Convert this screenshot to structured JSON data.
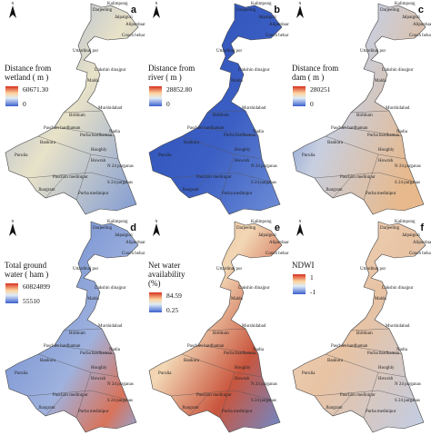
{
  "districts": [
    "Darjeeling",
    "Kalimpong",
    "Jalpaiguri",
    "Alipurduar",
    "Cooch behar",
    "Uttardinaj pur",
    "Dakshin dinajpur",
    "Malda",
    "Murshidabad",
    "Birbhum",
    "Nadia",
    "Paschim bardhaman",
    "Purba bardhaman",
    "Bankura",
    "Purulia",
    "Hooghly",
    "Howrah",
    "N 24 parganas",
    "Paschim medinipur",
    "Jhargram",
    "Purba medinipur",
    "S 24 parganas"
  ],
  "north_label": "N",
  "panels": [
    {
      "letter": "a",
      "title_lines": [
        "Distance from",
        "wetland ( m )"
      ],
      "max_label": "60671.30",
      "min_label": "0"
    },
    {
      "letter": "b",
      "title_lines": [
        "Distance from",
        "river ( m )"
      ],
      "max_label": "28852.80",
      "min_label": "0"
    },
    {
      "letter": "c",
      "title_lines": [
        "Distance from",
        "dam ( m )"
      ],
      "max_label": "280251",
      "min_label": "0"
    },
    {
      "letter": "d",
      "title_lines": [
        "Total ground",
        "water ( ham )"
      ],
      "max_label": "60824899",
      "min_label": "55510"
    },
    {
      "letter": "e",
      "title_lines": [
        "Net water",
        "availability",
        "(%)"
      ],
      "max_label": "84.59",
      "min_label": "0.25"
    },
    {
      "letter": "f",
      "title_lines": [
        "NDWI"
      ],
      "max_label": "1",
      "min_label": "-1"
    }
  ]
}
